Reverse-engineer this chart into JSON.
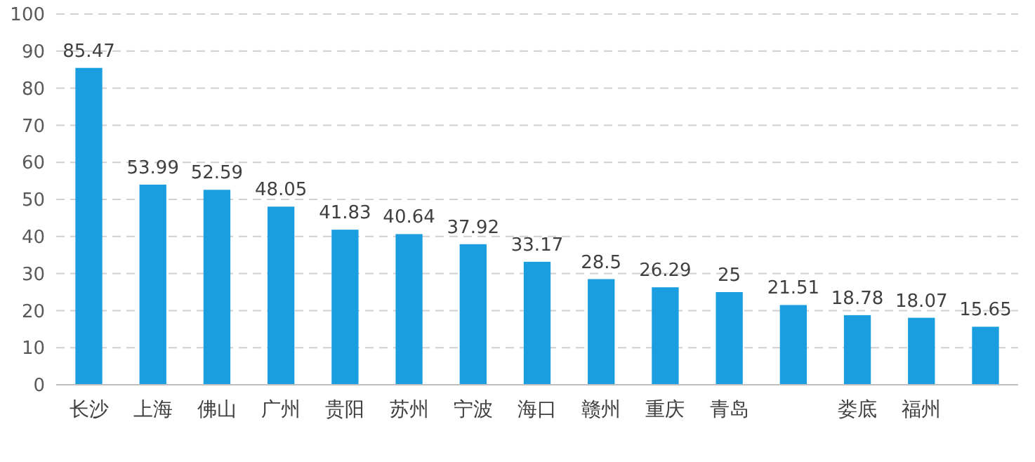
{
  "chart_data": {
    "type": "bar",
    "categories": [
      "长沙",
      "上海",
      "佛山",
      "广州",
      "贵阳",
      "苏州",
      "宁波",
      "海口",
      "赣州",
      "重庆",
      "青岛",
      null,
      "娄底",
      "福州",
      null
    ],
    "values": [
      85.47,
      53.99,
      52.59,
      48.05,
      41.83,
      40.64,
      37.92,
      33.17,
      28.5,
      26.29,
      25,
      21.51,
      18.78,
      18.07,
      15.65
    ],
    "color": "#1a9ee0",
    "ylim": [
      0,
      100
    ],
    "yticks": [
      0,
      10,
      20,
      30,
      40,
      50,
      60,
      70,
      80,
      90,
      100
    ],
    "grid": "y",
    "data_labels": true
  }
}
